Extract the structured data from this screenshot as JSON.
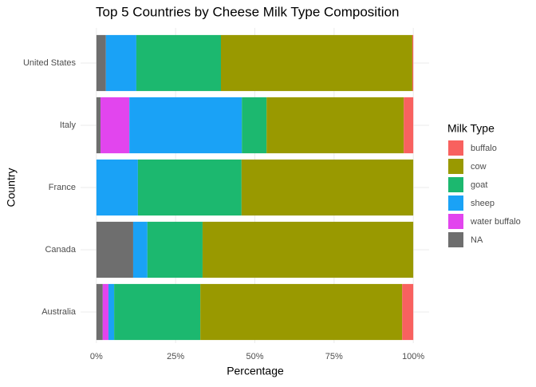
{
  "chart_data": {
    "type": "stacked-bar-horizontal",
    "title": "Top 5 Countries by Cheese Milk Type Composition",
    "x_label": "Percentage",
    "y_label": "Country",
    "legend_title": "Milk Type",
    "categories": [
      "United States",
      "Italy",
      "France",
      "Canada",
      "Australia"
    ],
    "series": [
      {
        "name": "buffalo",
        "color": "#F8615F",
        "values": [
          0.3,
          3,
          0,
          0,
          3.5
        ]
      },
      {
        "name": "cow",
        "color": "#999900",
        "values": [
          60.4,
          43.3,
          54.2,
          66.5,
          63.7
        ]
      },
      {
        "name": "goat",
        "color": "#1CB86F",
        "values": [
          26.7,
          7.8,
          32.7,
          17.4,
          27.2
        ]
      },
      {
        "name": "sheep",
        "color": "#1AA2F6",
        "values": [
          9.6,
          35.5,
          13.1,
          4.5,
          1.8
        ]
      },
      {
        "name": "water buffalo",
        "color": "#E245EE",
        "values": [
          0,
          9.1,
          0,
          0,
          1.8
        ]
      },
      {
        "name": "NA",
        "color": "#6E6E6E",
        "values": [
          3,
          1.3,
          0,
          11.6,
          2
        ]
      }
    ],
    "xlim": [
      -5,
      105
    ],
    "xticks": [
      {
        "value": 0,
        "label": "0%"
      },
      {
        "value": 25,
        "label": "25%"
      },
      {
        "value": 50,
        "label": "50%"
      },
      {
        "value": 75,
        "label": "75%"
      },
      {
        "value": 100,
        "label": "100%"
      }
    ],
    "grid": true,
    "legend_position": "right"
  }
}
